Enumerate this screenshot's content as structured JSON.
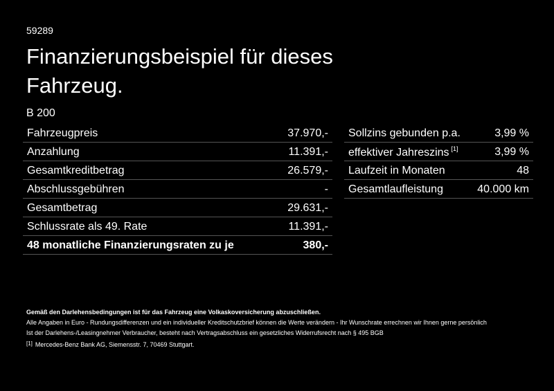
{
  "header": {
    "id": "59289",
    "title_lines": [
      "Finanzierungsbeispiel für dieses",
      "Fahrzeug."
    ]
  },
  "model": "B 200",
  "left_table": {
    "rows": [
      [
        "Fahrzeugpreis",
        "37.970,-"
      ],
      [
        "Anzahlung",
        "11.391,-"
      ],
      [
        "Gesamtkreditbetrag",
        "26.579,-"
      ],
      [
        "Abschlussgebühren",
        "-"
      ],
      [
        "Gesamtbetrag",
        "29.631,-"
      ],
      [
        "Schlussrate als 49. Rate",
        "11.391,-"
      ],
      [
        "48 monatliche Finanzierungsraten zu je",
        "380,-"
      ]
    ]
  },
  "right_table": {
    "rows": [
      {
        "label": "Sollzins gebunden p.a.",
        "value": "3,99 %"
      },
      {
        "label": "effektiver Jahreszins",
        "note": "[1]",
        "value": "3,99 %"
      },
      {
        "label": "Laufzeit in Monaten",
        "value": "48"
      },
      {
        "label": "Gesamtlaufleistung",
        "value": "40.000 km"
      }
    ]
  },
  "footer": {
    "bold": "Gemäß den Darlehensbedingungen ist für das Fahrzeug eine Volkaskoversicherung abzuschließen.",
    "lines": [
      "Alle Angaben in Euro - Rundungsdifferenzen und ein individueller Kreditschutzbrief können die Werte verändern - Ihr Wunschrate errechnen wir Ihnen gerne persönlich",
      "Ist der Darlehens-/Leasingnehmer Verbraucher, besteht nach Vertragsabschluss ein gesetzliches Widerrufsrecht nach § 495 BGB"
    ],
    "footnote": {
      "mark": "[1]",
      "text": "Mercedes-Benz Bank AG, Siemensstr. 7, 70469 Stuttgart."
    }
  }
}
